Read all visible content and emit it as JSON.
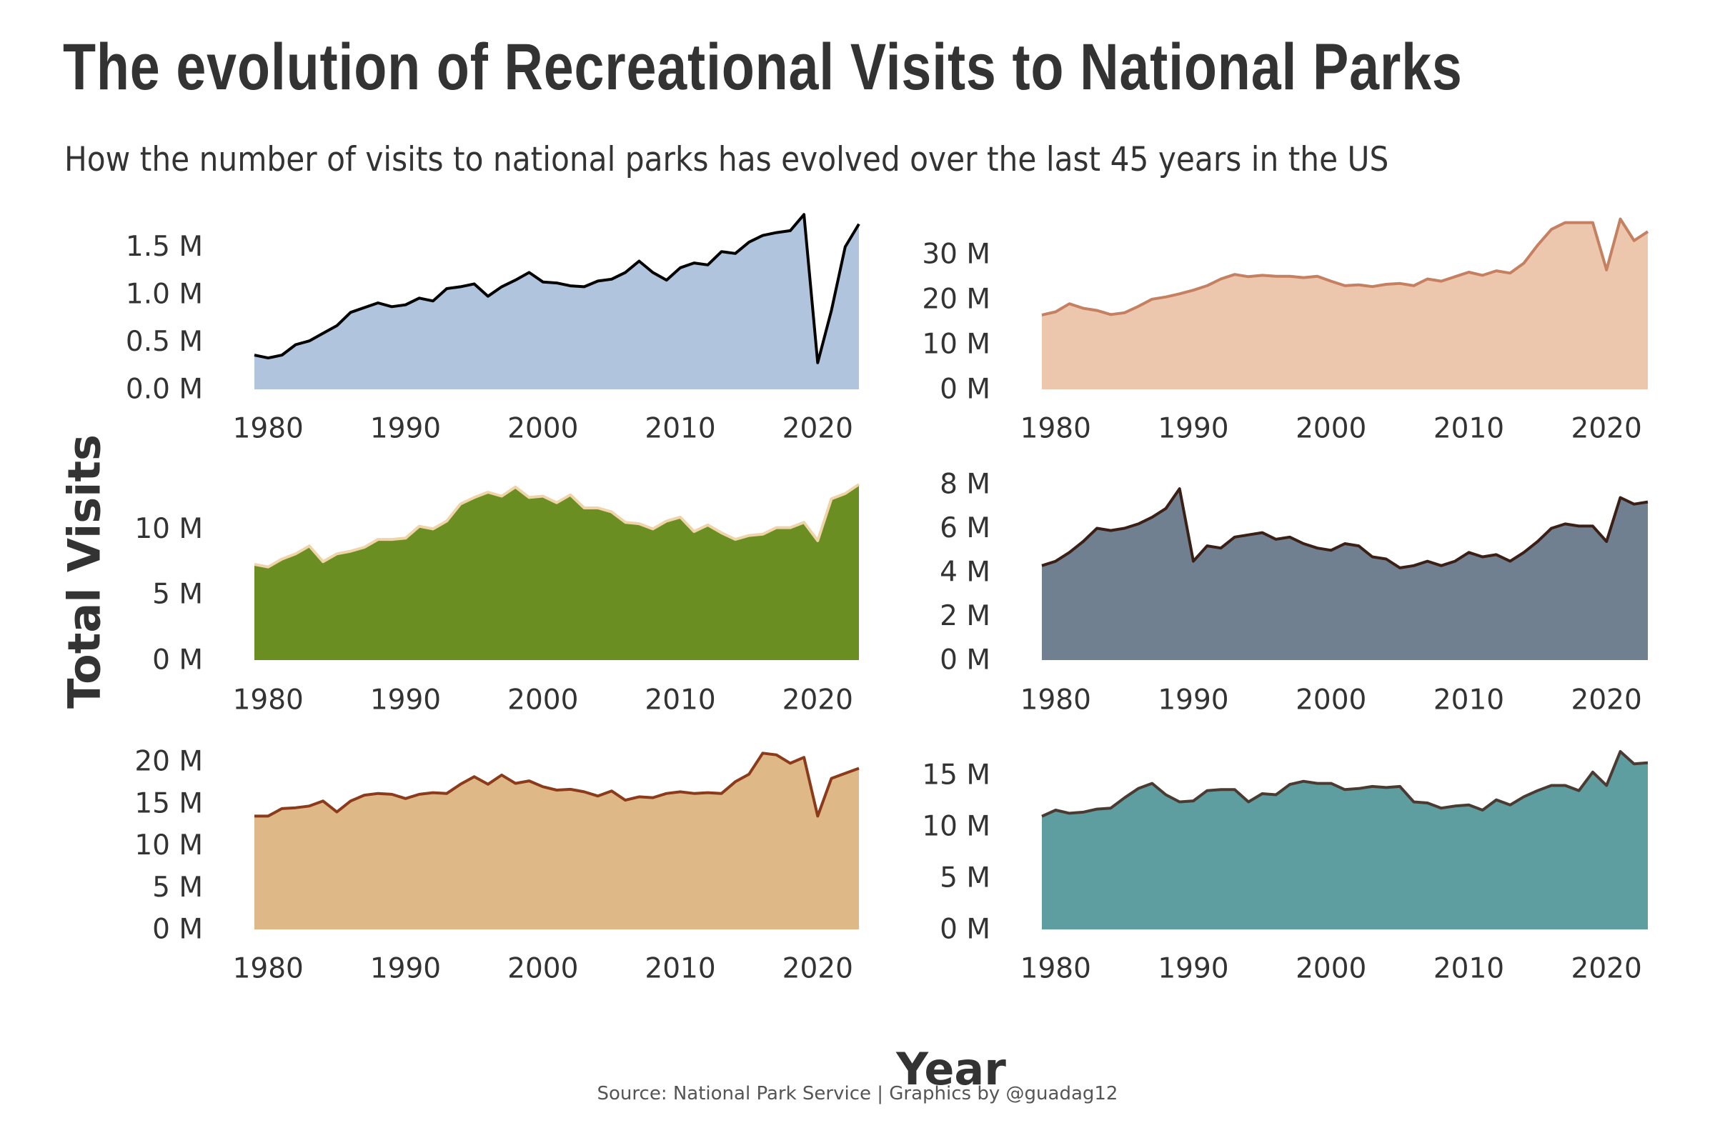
{
  "title": "The evolution of Recreational Visits to National Parks",
  "subtitle": "How the number of visits to national parks has evolved over the last 45 years in the US",
  "ylabel": "Total Visits",
  "xlabel": "Year",
  "caption": "Source: National Park Service |  Graphics by @guadag12",
  "colors": {
    "text": "#333333"
  },
  "chart_data": [
    {
      "type": "area",
      "title": "",
      "fill": "#b0c4de",
      "line": "#000000",
      "xlim": [
        1979,
        2023
      ],
      "ylim": [
        0,
        1.85
      ],
      "x_ticks": [
        1980,
        1990,
        2000,
        2010,
        2020
      ],
      "y_ticks": [
        0,
        0.5,
        1.0,
        1.5
      ],
      "y_tick_labels": [
        "0.0 M",
        "0.5 M",
        "1.0 M",
        "1.5 M"
      ],
      "x": [
        1979,
        1980,
        1981,
        1982,
        1983,
        1984,
        1985,
        1986,
        1987,
        1988,
        1989,
        1990,
        1991,
        1992,
        1993,
        1994,
        1995,
        1996,
        1997,
        1998,
        1999,
        2000,
        2001,
        2002,
        2003,
        2004,
        2005,
        2006,
        2007,
        2008,
        2009,
        2010,
        2011,
        2012,
        2013,
        2014,
        2015,
        2016,
        2017,
        2018,
        2019,
        2020,
        2021,
        2022,
        2023
      ],
      "values": [
        0.36,
        0.33,
        0.36,
        0.47,
        0.51,
        0.59,
        0.67,
        0.81,
        0.86,
        0.91,
        0.87,
        0.89,
        0.96,
        0.93,
        1.06,
        1.08,
        1.11,
        0.98,
        1.08,
        1.15,
        1.23,
        1.13,
        1.12,
        1.09,
        1.08,
        1.14,
        1.16,
        1.23,
        1.35,
        1.23,
        1.15,
        1.28,
        1.33,
        1.31,
        1.45,
        1.43,
        1.55,
        1.62,
        1.65,
        1.67,
        1.84,
        0.28,
        0.83,
        1.5,
        1.74
      ]
    },
    {
      "type": "area",
      "title": "",
      "fill": "#edc7ad",
      "line": "#c48060",
      "xlim": [
        1979,
        2023
      ],
      "ylim": [
        0,
        39
      ],
      "x_ticks": [
        1980,
        1990,
        2000,
        2010,
        2020
      ],
      "y_ticks": [
        0,
        10,
        20,
        30
      ],
      "y_tick_labels": [
        "0 M",
        "10 M",
        "20 M",
        "30 M"
      ],
      "x": [
        1979,
        1980,
        1981,
        1982,
        1983,
        1984,
        1985,
        1986,
        1987,
        1988,
        1989,
        1990,
        1991,
        1992,
        1993,
        1994,
        1995,
        1996,
        1997,
        1998,
        1999,
        2000,
        2001,
        2002,
        2003,
        2004,
        2005,
        2006,
        2007,
        2008,
        2009,
        2010,
        2011,
        2012,
        2013,
        2014,
        2015,
        2016,
        2017,
        2018,
        2019,
        2020,
        2021,
        2022,
        2023
      ],
      "values": [
        16.5,
        17.2,
        19.0,
        18.0,
        17.5,
        16.6,
        17.0,
        18.4,
        20.0,
        20.5,
        21.2,
        22.0,
        23.0,
        24.5,
        25.5,
        25.0,
        25.3,
        25.1,
        25.1,
        24.8,
        25.1,
        24.0,
        23.0,
        23.2,
        22.8,
        23.3,
        23.5,
        23.0,
        24.5,
        24.0,
        25.0,
        26.0,
        25.3,
        26.3,
        25.8,
        28.0,
        32.0,
        35.5,
        37.0,
        37.0,
        37.0,
        26.5,
        37.8,
        33.0,
        35.0
      ]
    },
    {
      "type": "area",
      "title": "",
      "fill": "#6b8e23",
      "line": "#eed4a6",
      "xlim": [
        1979,
        2023
      ],
      "ylim": [
        0,
        13.4
      ],
      "x_ticks": [
        1980,
        1990,
        2000,
        2010,
        2020
      ],
      "y_ticks": [
        0,
        5,
        10
      ],
      "y_tick_labels": [
        "0 M",
        "5 M",
        "10 M"
      ],
      "x": [
        1979,
        1980,
        1981,
        1982,
        1983,
        1984,
        1985,
        1986,
        1987,
        1988,
        1989,
        1990,
        1991,
        1992,
        1993,
        1994,
        1995,
        1996,
        1997,
        1998,
        1999,
        2000,
        2001,
        2002,
        2003,
        2004,
        2005,
        2006,
        2007,
        2008,
        2009,
        2010,
        2011,
        2012,
        2013,
        2014,
        2015,
        2016,
        2017,
        2018,
        2019,
        2020,
        2021,
        2022,
        2023
      ],
      "values": [
        7.3,
        7.1,
        7.7,
        8.1,
        8.7,
        7.5,
        8.1,
        8.3,
        8.6,
        9.2,
        9.2,
        9.3,
        10.2,
        10.0,
        10.6,
        11.9,
        12.4,
        12.8,
        12.5,
        13.2,
        12.4,
        12.5,
        12.0,
        12.6,
        11.6,
        11.6,
        11.3,
        10.5,
        10.4,
        10.0,
        10.6,
        10.9,
        9.8,
        10.3,
        9.7,
        9.2,
        9.5,
        9.6,
        10.1,
        10.1,
        10.5,
        9.1,
        12.3,
        12.7,
        13.4
      ]
    },
    {
      "type": "area",
      "title": "",
      "fill": "#708090",
      "line": "#3a1f16",
      "xlim": [
        1979,
        2023
      ],
      "ylim": [
        0,
        8
      ],
      "x_ticks": [
        1980,
        1990,
        2000,
        2010,
        2020
      ],
      "y_ticks": [
        0,
        2,
        4,
        6,
        8
      ],
      "y_tick_labels": [
        "0 M",
        "2 M",
        "4 M",
        "6 M",
        "8 M"
      ],
      "x": [
        1979,
        1980,
        1981,
        1982,
        1983,
        1984,
        1985,
        1986,
        1987,
        1988,
        1989,
        1990,
        1991,
        1992,
        1993,
        1994,
        1995,
        1996,
        1997,
        1998,
        1999,
        2000,
        2001,
        2002,
        2003,
        2004,
        2005,
        2006,
        2007,
        2008,
        2009,
        2010,
        2011,
        2012,
        2013,
        2014,
        2015,
        2016,
        2017,
        2018,
        2019,
        2020,
        2021,
        2022,
        2023
      ],
      "values": [
        4.3,
        4.5,
        4.9,
        5.4,
        6.0,
        5.9,
        6.0,
        6.2,
        6.5,
        6.9,
        7.8,
        4.5,
        5.2,
        5.1,
        5.6,
        5.7,
        5.8,
        5.5,
        5.6,
        5.3,
        5.1,
        5.0,
        5.3,
        5.2,
        4.7,
        4.6,
        4.2,
        4.3,
        4.5,
        4.3,
        4.5,
        4.9,
        4.7,
        4.8,
        4.5,
        4.9,
        5.4,
        6.0,
        6.2,
        6.1,
        6.1,
        5.4,
        7.4,
        7.1,
        7.2
      ]
    },
    {
      "type": "area",
      "title": "",
      "fill": "#deb887",
      "line": "#8b3a1a",
      "xlim": [
        1979,
        2023
      ],
      "ylim": [
        0,
        21.2
      ],
      "x_ticks": [
        1980,
        1990,
        2000,
        2010,
        2020
      ],
      "y_ticks": [
        0,
        5,
        10,
        15,
        20
      ],
      "y_tick_labels": [
        "0 M",
        "5 M",
        "10 M",
        "15 M",
        "20 M"
      ],
      "x": [
        1979,
        1980,
        1981,
        1982,
        1983,
        1984,
        1985,
        1986,
        1987,
        1988,
        1989,
        1990,
        1991,
        1992,
        1993,
        1994,
        1995,
        1996,
        1997,
        1998,
        1999,
        2000,
        2001,
        2002,
        2003,
        2004,
        2005,
        2006,
        2007,
        2008,
        2009,
        2010,
        2011,
        2012,
        2013,
        2014,
        2015,
        2016,
        2017,
        2018,
        2019,
        2020,
        2021,
        2022,
        2023
      ],
      "values": [
        13.5,
        13.5,
        14.4,
        14.5,
        14.7,
        15.3,
        14.0,
        15.3,
        16.0,
        16.2,
        16.1,
        15.6,
        16.1,
        16.3,
        16.2,
        17.3,
        18.2,
        17.3,
        18.4,
        17.4,
        17.7,
        17.0,
        16.6,
        16.7,
        16.4,
        15.9,
        16.5,
        15.4,
        15.8,
        15.7,
        16.2,
        16.4,
        16.2,
        16.3,
        16.2,
        17.6,
        18.5,
        21.0,
        20.8,
        19.8,
        20.5,
        13.5,
        18.0,
        18.6,
        19.2
      ]
    },
    {
      "type": "area",
      "title": "",
      "fill": "#5f9ea0",
      "line": "#4a3b32",
      "xlim": [
        1979,
        2023
      ],
      "ylim": [
        0,
        17.3
      ],
      "x_ticks": [
        1980,
        1990,
        2000,
        2010,
        2020
      ],
      "y_ticks": [
        0,
        5,
        10,
        15
      ],
      "y_tick_labels": [
        "0 M",
        "5 M",
        "10 M",
        "15 M"
      ],
      "x": [
        1979,
        1980,
        1981,
        1982,
        1983,
        1984,
        1985,
        1986,
        1987,
        1988,
        1989,
        1990,
        1991,
        1992,
        1993,
        1994,
        1995,
        1996,
        1997,
        1998,
        1999,
        2000,
        2001,
        2002,
        2003,
        2004,
        2005,
        2006,
        2007,
        2008,
        2009,
        2010,
        2011,
        2012,
        2013,
        2014,
        2015,
        2016,
        2017,
        2018,
        2019,
        2020,
        2021,
        2022,
        2023
      ],
      "values": [
        11.0,
        11.6,
        11.3,
        11.4,
        11.7,
        11.8,
        12.8,
        13.7,
        14.2,
        13.1,
        12.4,
        12.5,
        13.5,
        13.6,
        13.6,
        12.4,
        13.2,
        13.1,
        14.1,
        14.4,
        14.2,
        14.2,
        13.6,
        13.7,
        13.9,
        13.8,
        13.9,
        12.4,
        12.3,
        11.8,
        12.0,
        12.1,
        11.6,
        12.6,
        12.1,
        12.9,
        13.5,
        14.0,
        14.0,
        13.5,
        15.3,
        14.0,
        17.3,
        16.1,
        16.2
      ]
    }
  ]
}
